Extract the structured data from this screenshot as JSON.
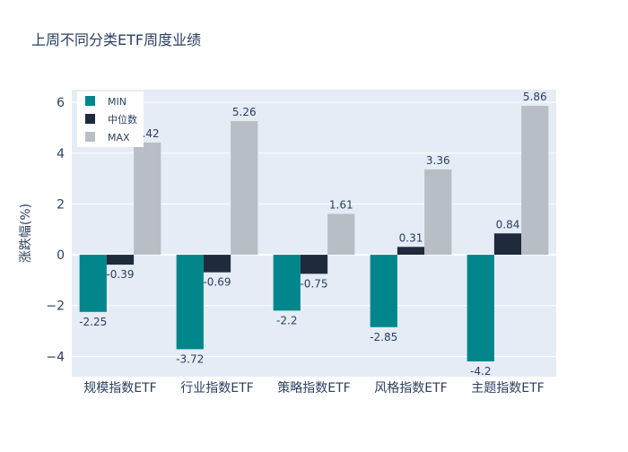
{
  "chart_data": {
    "type": "bar",
    "title": "上周不同分类ETF周度业绩",
    "ylabel": "涨跌幅(%)",
    "xlabel": "",
    "ylim": [
      -4.8,
      6.5
    ],
    "yticks": [
      -4,
      -2,
      0,
      2,
      4,
      6
    ],
    "ytick_labels": [
      "−4",
      "−2",
      "0",
      "2",
      "4",
      "6"
    ],
    "categories": [
      "规模指数ETF",
      "行业指数ETF",
      "策略指数ETF",
      "风格指数ETF",
      "主题指数ETF"
    ],
    "series": [
      {
        "name": "MIN",
        "color": "#00868b",
        "values": [
          -2.25,
          -3.72,
          -2.2,
          -2.85,
          -4.2
        ]
      },
      {
        "name": "中位数",
        "color": "#1f2a3c",
        "values": [
          -0.39,
          -0.69,
          -0.75,
          0.31,
          0.84
        ]
      },
      {
        "name": "MAX",
        "color": "#b8bec6",
        "values": [
          4.42,
          5.26,
          1.61,
          3.36,
          5.86
        ]
      }
    ],
    "legend_position": "top-left",
    "grid": true,
    "colors": {
      "plot_bg": "#e5ecf6",
      "grid": "#ffffff",
      "text": "#2a3f5f"
    }
  }
}
